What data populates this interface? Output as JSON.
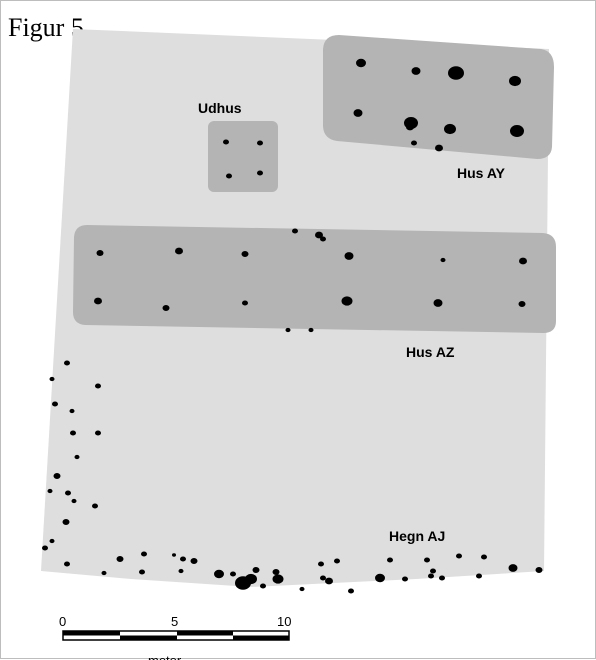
{
  "figure": {
    "caption": "Figur 5",
    "labels": {
      "outhouse": "Udhus",
      "house_ay": "Hus AY",
      "house_az": "Hus AZ",
      "fence": "Hegn AJ"
    },
    "scale_bar": {
      "ticks": [
        "0",
        "5",
        "10"
      ],
      "unit": "meter"
    }
  },
  "colors": {
    "site_area": "#dedede",
    "structure": "#b4b4b4",
    "posthole": "#000000"
  }
}
